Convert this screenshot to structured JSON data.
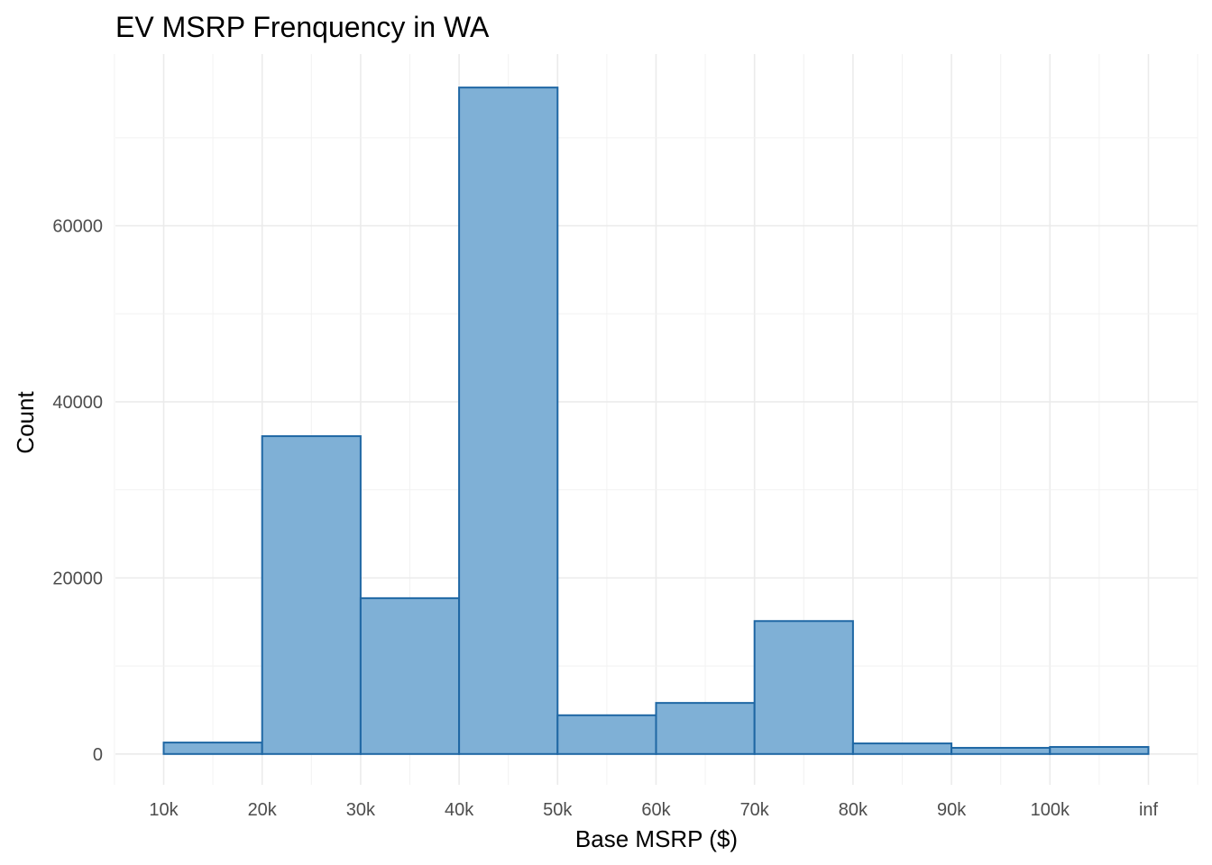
{
  "chart_data": {
    "type": "bar",
    "title": "EV MSRP Frenquency in WA",
    "xlabel": "Base MSRP ($)",
    "ylabel": "Count",
    "categories": [
      "10k-20k",
      "20k-30k",
      "30k-40k",
      "40k-50k",
      "50k-60k",
      "60k-70k",
      "70k-80k",
      "80k-90k",
      "90k-100k",
      "100k-inf"
    ],
    "values": [
      1300,
      36100,
      17700,
      75700,
      4400,
      5800,
      15100,
      1200,
      700,
      800
    ],
    "x_tick_labels": [
      "10k",
      "20k",
      "30k",
      "40k",
      "50k",
      "60k",
      "70k",
      "80k",
      "90k",
      "100k",
      "inf"
    ],
    "y_ticks": [
      0,
      20000,
      40000,
      60000
    ],
    "ylim": [
      -3500,
      79500
    ],
    "grid": true,
    "legend": "none",
    "colors": {
      "fill": "#7FB0D6",
      "stroke": "#1F67A4"
    }
  }
}
